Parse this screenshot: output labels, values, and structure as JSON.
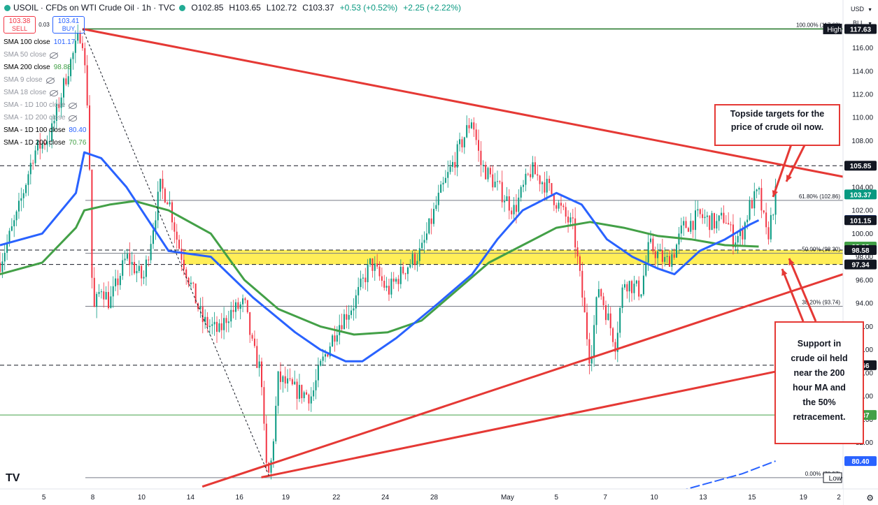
{
  "header": {
    "symbol": "USOIL · CFDs on WTI Crude Oil · 1h · TVC",
    "open": "O102.85",
    "high": "H103.65",
    "low": "L102.72",
    "close": "C103.37",
    "change": "+0.53 (+0.52%)",
    "change2": "+2.25 (+2.22%)"
  },
  "trade": {
    "sell_price": "103.38",
    "sell_label": "SELL",
    "spread": "0.03",
    "buy_price": "103.41",
    "buy_label": "BUY"
  },
  "legend": [
    {
      "label": "SMA 100 close",
      "value": "101.17",
      "color": "#2962ff",
      "hidden": false
    },
    {
      "label": "SMA 50 close",
      "value": "",
      "color": "#9598a1",
      "hidden": true
    },
    {
      "label": "SMA 200 close",
      "value": "98.88",
      "color": "#43a047",
      "hidden": false
    },
    {
      "label": "SMA 9 close",
      "value": "",
      "color": "#9598a1",
      "hidden": true
    },
    {
      "label": "SMA 18 close",
      "value": "",
      "color": "#9598a1",
      "hidden": true
    },
    {
      "label": "SMA - 1D 100 close",
      "value": "",
      "color": "#9598a1",
      "hidden": true
    },
    {
      "label": "SMA - 1D 200 close",
      "value": "",
      "color": "#9598a1",
      "hidden": true
    },
    {
      "label": "SMA - 1D 100 close",
      "value": "80.40",
      "color": "#2962ff",
      "hidden": false
    },
    {
      "label": "SMA - 1D 200 close",
      "value": "70.76",
      "color": "#43a047",
      "hidden": false
    }
  ],
  "toolbar": {
    "currency": "USD",
    "unit": "BLL"
  },
  "brand": {
    "logo_text": "TV"
  },
  "annotations": {
    "topside": [
      "Topside targets for the",
      "price of crude oil now."
    ],
    "support": [
      "Support in",
      "crude oil held",
      "near the 200",
      "hour MA and",
      "the 50%",
      "retracement."
    ]
  },
  "colors": {
    "up": "#089981",
    "down": "#f23645",
    "sma100": "#2962ff",
    "sma200": "#43a047",
    "trend": "#e53935",
    "zone": "#ffeb3b",
    "grid": "#ffffff"
  },
  "chart_data": {
    "type": "candlestick",
    "ylim": [
      78.0,
      118.8
    ],
    "y_ticks": [
      82.0,
      84.0,
      86.0,
      88.0,
      90.0,
      92.0,
      94.0,
      96.0,
      98.0,
      100.0,
      102.0,
      104.0,
      106.0,
      108.0,
      110.0,
      112.0,
      114.0,
      116.0
    ],
    "x_ticks": [
      "5",
      "8",
      "10",
      "14",
      "16",
      "19",
      "22",
      "24",
      "28",
      "May",
      "5",
      "7",
      "10",
      "13",
      "15",
      "19",
      "2"
    ],
    "hlines": [
      {
        "y": 117.63,
        "label": "100.00% (117.63)",
        "style": "solid",
        "color": "#2e7d32"
      },
      {
        "y": 102.86,
        "label": "61.80% (102.86)",
        "style": "solid",
        "color": "#787b86"
      },
      {
        "y": 98.3,
        "label": "50.00% (98.30)",
        "style": "solid",
        "color": "#787b86"
      },
      {
        "y": 93.74,
        "label": "38.20% (93.74)",
        "style": "solid",
        "color": "#787b86"
      },
      {
        "y": 78.97,
        "label": "0.00% (78.97)",
        "style": "solid",
        "color": "#787b86"
      },
      {
        "y": 105.85,
        "label": "",
        "style": "dashed",
        "color": "#131722"
      },
      {
        "y": 98.58,
        "label": "",
        "style": "dashed",
        "color": "#131722"
      },
      {
        "y": 97.34,
        "label": "",
        "style": "dashed",
        "color": "#131722"
      },
      {
        "y": 88.66,
        "label": "",
        "style": "dashed",
        "color": "#131722"
      },
      {
        "y": 84.37,
        "label": "",
        "style": "solid",
        "color": "#43a047"
      }
    ],
    "zone": [
      97.34,
      98.58
    ],
    "price_labels": [
      {
        "y": 117.63,
        "text": "117.63",
        "bg": "#43a047",
        "fg": "#ffffff"
      },
      {
        "y": 117.63,
        "text": "117.63",
        "bg": "#131722",
        "fg": "#ffffff",
        "tag": "High"
      },
      {
        "y": 105.85,
        "text": "105.85",
        "bg": "#131722",
        "fg": "#ffffff"
      },
      {
        "y": 103.37,
        "text": "103.37",
        "bg": "#089981",
        "fg": "#ffffff"
      },
      {
        "y": 101.17,
        "text": "101.17",
        "bg": "#2962ff",
        "fg": "#ffffff"
      },
      {
        "y": 101.15,
        "text": "101.15",
        "bg": "#131722",
        "fg": "#ffffff"
      },
      {
        "y": 98.88,
        "text": "98.88",
        "bg": "#43a047",
        "fg": "#ffffff"
      },
      {
        "y": 98.58,
        "text": "98.58",
        "bg": "#131722",
        "fg": "#ffffff"
      },
      {
        "y": 97.34,
        "text": "97.34",
        "bg": "#131722",
        "fg": "#ffffff"
      },
      {
        "y": 88.66,
        "text": "88.66",
        "bg": "#131722",
        "fg": "#ffffff"
      },
      {
        "y": 84.37,
        "text": "84.37",
        "bg": "#43a047",
        "fg": "#ffffff"
      },
      {
        "y": 80.4,
        "text": "80.40",
        "bg": "#2962ff",
        "fg": "#ffffff"
      },
      {
        "y": 78.97,
        "text": "",
        "bg": "#ffffff",
        "fg": "#131722",
        "tag": "Low"
      }
    ],
    "sma100": [
      [
        0.0,
        99.0
      ],
      [
        0.05,
        100.0
      ],
      [
        0.09,
        103.5
      ],
      [
        0.1,
        107.0
      ],
      [
        0.12,
        106.5
      ],
      [
        0.15,
        104.0
      ],
      [
        0.2,
        98.5
      ],
      [
        0.25,
        98.0
      ],
      [
        0.3,
        94.5
      ],
      [
        0.35,
        91.5
      ],
      [
        0.38,
        90.0
      ],
      [
        0.41,
        89.0
      ],
      [
        0.43,
        89.0
      ],
      [
        0.47,
        91.0
      ],
      [
        0.52,
        94.0
      ],
      [
        0.56,
        96.5
      ],
      [
        0.59,
        99.5
      ],
      [
        0.62,
        102.0
      ],
      [
        0.66,
        103.5
      ],
      [
        0.69,
        102.5
      ],
      [
        0.72,
        99.5
      ],
      [
        0.75,
        98.0
      ],
      [
        0.78,
        97.0
      ],
      [
        0.8,
        96.5
      ],
      [
        0.83,
        98.5
      ],
      [
        0.86,
        99.5
      ],
      [
        0.89,
        100.8
      ],
      [
        0.9,
        101.15
      ]
    ],
    "sma200": [
      [
        0.0,
        96.5
      ],
      [
        0.05,
        97.5
      ],
      [
        0.09,
        100.5
      ],
      [
        0.1,
        102.0
      ],
      [
        0.13,
        102.5
      ],
      [
        0.16,
        102.8
      ],
      [
        0.2,
        102.0
      ],
      [
        0.25,
        100.0
      ],
      [
        0.29,
        96.0
      ],
      [
        0.33,
        93.5
      ],
      [
        0.38,
        92.0
      ],
      [
        0.42,
        91.3
      ],
      [
        0.46,
        91.5
      ],
      [
        0.5,
        92.5
      ],
      [
        0.54,
        95.0
      ],
      [
        0.58,
        97.5
      ],
      [
        0.62,
        99.0
      ],
      [
        0.66,
        100.5
      ],
      [
        0.7,
        101.0
      ],
      [
        0.74,
        100.5
      ],
      [
        0.78,
        99.8
      ],
      [
        0.82,
        99.5
      ],
      [
        0.86,
        99.0
      ],
      [
        0.9,
        98.88
      ]
    ],
    "trendlines": [
      {
        "from": [
          0.098,
          117.63
        ],
        "to": [
          1.0,
          104.9
        ]
      },
      {
        "from": [
          0.24,
          78.2
        ],
        "to": [
          1.0,
          96.5
        ]
      },
      {
        "from": [
          0.31,
          79.0
        ],
        "to": [
          1.0,
          89.3
        ]
      }
    ],
    "retracement_diagonal": {
      "from": [
        0.098,
        117.63
      ],
      "to": [
        0.32,
        78.97
      ]
    },
    "price_path": [
      [
        0.0,
        97.5
      ],
      [
        0.02,
        101.5
      ],
      [
        0.04,
        107.0
      ],
      [
        0.06,
        108.5
      ],
      [
        0.08,
        114.0
      ],
      [
        0.097,
        117.6
      ],
      [
        0.105,
        110.0
      ],
      [
        0.11,
        93.0
      ],
      [
        0.12,
        95.5
      ],
      [
        0.13,
        94.0
      ],
      [
        0.15,
        98.0
      ],
      [
        0.17,
        96.0
      ],
      [
        0.19,
        104.0
      ],
      [
        0.2,
        103.0
      ],
      [
        0.21,
        99.5
      ],
      [
        0.22,
        97.0
      ],
      [
        0.24,
        92.5
      ],
      [
        0.26,
        91.5
      ],
      [
        0.27,
        93.0
      ],
      [
        0.29,
        94.0
      ],
      [
        0.3,
        90.0
      ],
      [
        0.31,
        88.0
      ],
      [
        0.315,
        80.0
      ],
      [
        0.32,
        79.0
      ],
      [
        0.325,
        83.0
      ],
      [
        0.33,
        87.5
      ],
      [
        0.35,
        86.5
      ],
      [
        0.37,
        86.0
      ],
      [
        0.38,
        88.5
      ],
      [
        0.4,
        92.0
      ],
      [
        0.42,
        94.0
      ],
      [
        0.44,
        97.5
      ],
      [
        0.46,
        95.0
      ],
      [
        0.48,
        97.0
      ],
      [
        0.5,
        98.5
      ],
      [
        0.52,
        103.0
      ],
      [
        0.54,
        106.5
      ],
      [
        0.56,
        110.0
      ],
      [
        0.57,
        106.0
      ],
      [
        0.59,
        104.0
      ],
      [
        0.61,
        102.0
      ],
      [
        0.63,
        105.5
      ],
      [
        0.65,
        104.0
      ],
      [
        0.67,
        101.5
      ],
      [
        0.68,
        100.5
      ],
      [
        0.69,
        95.0
      ],
      [
        0.7,
        89.0
      ],
      [
        0.71,
        95.5
      ],
      [
        0.72,
        93.0
      ],
      [
        0.73,
        90.5
      ],
      [
        0.74,
        96.0
      ],
      [
        0.75,
        95.5
      ],
      [
        0.76,
        95.0
      ],
      [
        0.77,
        99.0
      ],
      [
        0.79,
        97.5
      ],
      [
        0.8,
        98.5
      ],
      [
        0.81,
        100.5
      ],
      [
        0.83,
        101.5
      ],
      [
        0.85,
        100.8
      ],
      [
        0.86,
        101.5
      ],
      [
        0.87,
        99.5
      ],
      [
        0.88,
        100.0
      ],
      [
        0.89,
        102.5
      ],
      [
        0.9,
        103.5
      ],
      [
        0.91,
        99.5
      ],
      [
        0.92,
        103.37
      ]
    ],
    "sma_1d_100": [
      [
        0.79,
        77.5
      ],
      [
        0.84,
        78.5
      ],
      [
        0.88,
        79.3
      ],
      [
        0.92,
        80.4
      ]
    ]
  }
}
